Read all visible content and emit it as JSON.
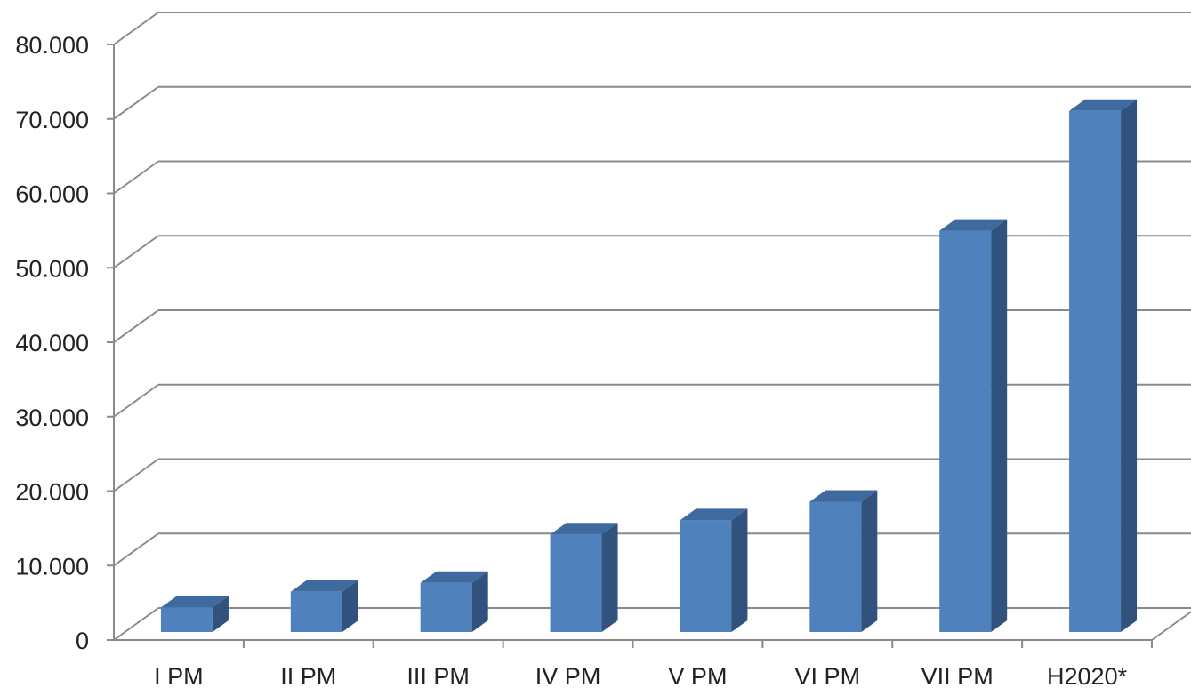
{
  "chart_data": {
    "type": "bar",
    "title": "",
    "xlabel": "",
    "ylabel": "",
    "categories": [
      "I PM",
      "II PM",
      "III PM",
      "IV PM",
      "V PM",
      "VI PM",
      "VII PM",
      "H2020*"
    ],
    "values": [
      3300,
      5400,
      6600,
      13100,
      15000,
      17500,
      53900,
      70000
    ],
    "ylim": [
      0,
      80000
    ],
    "yticks": [
      "0",
      "10.000",
      "20.000",
      "30.000",
      "40.000",
      "50.000",
      "60.000",
      "70.000",
      "80.000"
    ],
    "grid": true,
    "style": "3d-column",
    "colors": {
      "front": "#4f81bd",
      "top": "#3e6aa0",
      "side": "#30527c",
      "grid": "#8a8a8a"
    }
  }
}
